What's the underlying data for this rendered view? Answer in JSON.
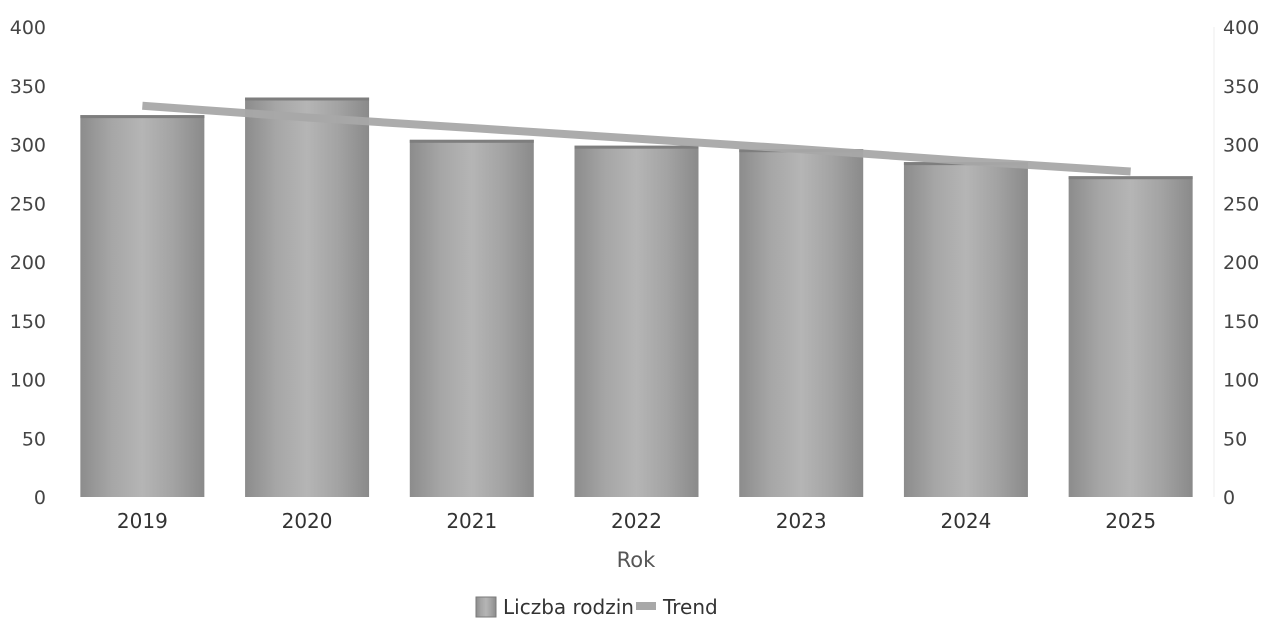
{
  "chart_data": {
    "type": "bar",
    "categories": [
      "2019",
      "2020",
      "2021",
      "2022",
      "2023",
      "2024",
      "2025"
    ],
    "series": [
      {
        "name": "Liczba rodzin",
        "kind": "bar",
        "values": [
          325,
          340,
          304,
          299,
          296,
          285,
          273
        ]
      },
      {
        "name": "Trend",
        "kind": "line",
        "values": [
          333,
          323,
          314,
          305,
          296,
          286,
          277
        ]
      }
    ],
    "title": "",
    "xlabel": "Rok",
    "ylabel": "",
    "ylim": [
      0,
      400
    ],
    "yticks": [
      "0",
      "50",
      "100",
      "150",
      "200",
      "250",
      "300",
      "350",
      "400"
    ],
    "y2ticks": [
      "0",
      "50",
      "100",
      "150",
      "200",
      "250",
      "300",
      "350",
      "400"
    ],
    "grid": false,
    "legend_position": "bottom-center",
    "colors": {
      "bar": "#9a9a9a",
      "bar_light": "#b4b4b4",
      "bar_dark": "#878787",
      "trend": "#a8a8a8"
    }
  }
}
